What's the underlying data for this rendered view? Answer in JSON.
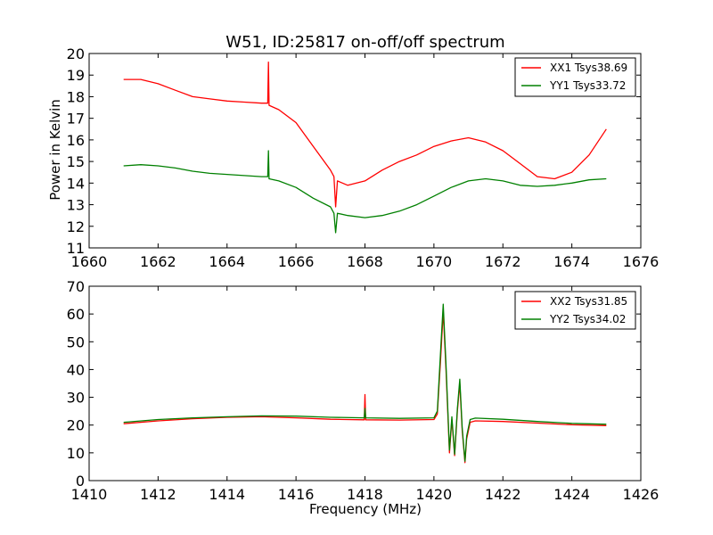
{
  "title": "W51, ID:25817 on-off/off spectrum",
  "ylabel": "Power in Kelvin",
  "xlabel": "Frequency (MHz)",
  "colors": {
    "xx": "#ff0000",
    "yy": "#008000"
  },
  "chart_data": [
    {
      "type": "line",
      "title": "W51, ID:25817 on-off/off spectrum",
      "xlabel": "",
      "ylabel": "Power in Kelvin",
      "xlim": [
        1660,
        1676
      ],
      "ylim": [
        11,
        20
      ],
      "xticks": [
        "1660",
        "1662",
        "1664",
        "1666",
        "1668",
        "1670",
        "1672",
        "1674",
        "1676"
      ],
      "yticks": [
        "11",
        "12",
        "13",
        "14",
        "15",
        "16",
        "17",
        "18",
        "19",
        "20"
      ],
      "legend": "top-right",
      "grid": false,
      "series": [
        {
          "name": "XX1 Tsys38.69",
          "color": "#ff0000",
          "x": [
            1661.0,
            1661.5,
            1662.0,
            1662.5,
            1663.0,
            1663.5,
            1664.0,
            1664.5,
            1665.0,
            1665.18,
            1665.2,
            1665.22,
            1665.5,
            1666.0,
            1666.5,
            1667.0,
            1667.1,
            1667.15,
            1667.2,
            1667.5,
            1668.0,
            1668.5,
            1669.0,
            1669.5,
            1670.0,
            1670.5,
            1671.0,
            1671.5,
            1672.0,
            1672.5,
            1673.0,
            1673.5,
            1674.0,
            1674.5,
            1675.0
          ],
          "y": [
            18.8,
            18.8,
            18.6,
            18.3,
            18.0,
            17.9,
            17.8,
            17.75,
            17.7,
            17.7,
            19.6,
            17.6,
            17.4,
            16.8,
            15.7,
            14.6,
            14.3,
            12.9,
            14.1,
            13.9,
            14.1,
            14.6,
            15.0,
            15.3,
            15.7,
            15.95,
            16.1,
            15.9,
            15.5,
            14.9,
            14.3,
            14.2,
            14.5,
            15.3,
            16.5
          ]
        },
        {
          "name": "YY1 Tsys33.72",
          "color": "#008000",
          "x": [
            1661.0,
            1661.5,
            1662.0,
            1662.5,
            1663.0,
            1663.5,
            1664.0,
            1664.5,
            1665.0,
            1665.18,
            1665.2,
            1665.22,
            1665.5,
            1666.0,
            1666.5,
            1667.0,
            1667.1,
            1667.15,
            1667.2,
            1667.5,
            1668.0,
            1668.5,
            1669.0,
            1669.5,
            1670.0,
            1670.5,
            1671.0,
            1671.5,
            1672.0,
            1672.5,
            1673.0,
            1673.5,
            1674.0,
            1674.5,
            1675.0
          ],
          "y": [
            14.8,
            14.85,
            14.8,
            14.7,
            14.55,
            14.45,
            14.4,
            14.35,
            14.3,
            14.3,
            15.5,
            14.2,
            14.1,
            13.8,
            13.3,
            12.9,
            12.6,
            11.7,
            12.6,
            12.5,
            12.4,
            12.5,
            12.7,
            13.0,
            13.4,
            13.8,
            14.1,
            14.2,
            14.1,
            13.9,
            13.85,
            13.9,
            14.0,
            14.15,
            14.2
          ]
        }
      ]
    },
    {
      "type": "line",
      "title": "",
      "xlabel": "Frequency (MHz)",
      "ylabel": "",
      "xlim": [
        1410,
        1426
      ],
      "ylim": [
        0,
        70
      ],
      "xticks": [
        "1410",
        "1412",
        "1414",
        "1416",
        "1418",
        "1420",
        "1422",
        "1424",
        "1426"
      ],
      "yticks": [
        "0",
        "10",
        "20",
        "30",
        "40",
        "50",
        "60",
        "70"
      ],
      "legend": "top-right",
      "grid": false,
      "series": [
        {
          "name": "XX2 Tsys31.85",
          "color": "#ff0000",
          "x": [
            1411.0,
            1412.0,
            1413.0,
            1414.0,
            1415.0,
            1416.0,
            1417.0,
            1417.98,
            1418.0,
            1418.02,
            1419.0,
            1420.0,
            1420.1,
            1420.2,
            1420.27,
            1420.35,
            1420.45,
            1420.52,
            1420.6,
            1420.68,
            1420.75,
            1420.82,
            1420.9,
            1420.95,
            1421.05,
            1421.2,
            1422.0,
            1423.0,
            1424.0,
            1425.0
          ],
          "y": [
            20.5,
            21.5,
            22.3,
            22.8,
            23.0,
            22.6,
            22.1,
            21.9,
            31.0,
            21.9,
            21.8,
            22.0,
            24.0,
            45.0,
            61.0,
            40.0,
            10.0,
            22.0,
            9.0,
            25.0,
            35.0,
            18.0,
            6.5,
            15.0,
            21.0,
            21.5,
            21.3,
            20.7,
            20.1,
            19.8
          ]
        },
        {
          "name": "YY2 Tsys34.02",
          "color": "#008000",
          "x": [
            1411.0,
            1412.0,
            1413.0,
            1414.0,
            1415.0,
            1416.0,
            1417.0,
            1417.98,
            1418.0,
            1418.02,
            1419.0,
            1420.0,
            1420.1,
            1420.2,
            1420.27,
            1420.35,
            1420.45,
            1420.52,
            1420.6,
            1420.68,
            1420.75,
            1420.82,
            1420.9,
            1420.95,
            1421.05,
            1421.2,
            1422.0,
            1423.0,
            1424.0,
            1425.0
          ],
          "y": [
            21.0,
            22.0,
            22.6,
            23.0,
            23.3,
            23.2,
            22.8,
            22.6,
            26.0,
            22.6,
            22.4,
            22.6,
            25.0,
            48.0,
            63.5,
            42.0,
            11.0,
            23.0,
            9.5,
            26.0,
            36.5,
            19.0,
            7.0,
            16.0,
            22.0,
            22.5,
            22.1,
            21.3,
            20.6,
            20.3
          ]
        }
      ]
    }
  ]
}
